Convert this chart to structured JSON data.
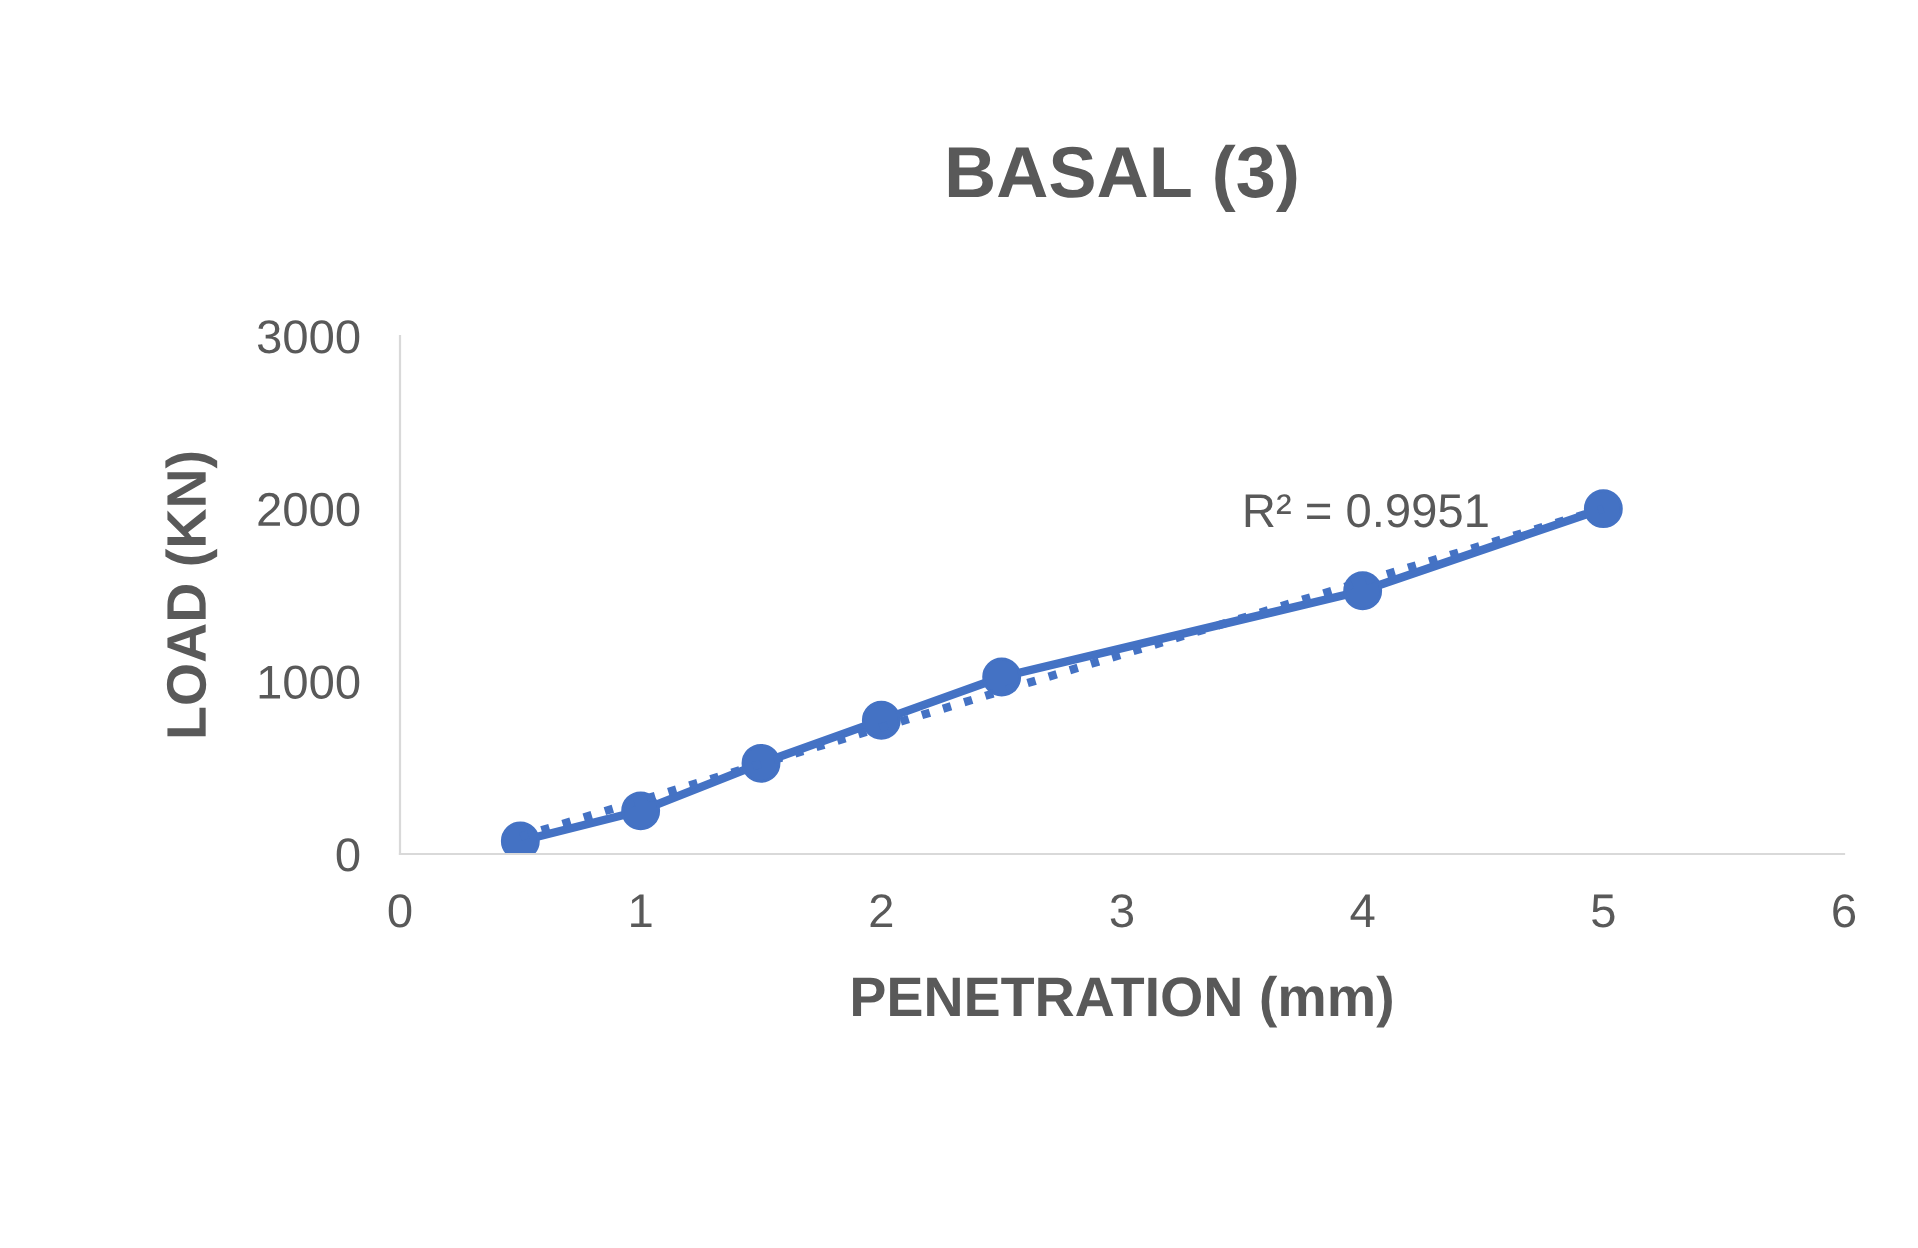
{
  "chart_data": {
    "type": "line",
    "title": "BASAL (3)",
    "xlabel": "PENETRATION (mm)",
    "ylabel": "LOAD (KN)",
    "xlim": [
      0,
      6
    ],
    "xticks": [
      0,
      1,
      2,
      3,
      4,
      5,
      6
    ],
    "ylim": [
      0,
      3000
    ],
    "yticks": [
      0,
      1000,
      2000,
      3000
    ],
    "grid": false,
    "legend": false,
    "series": [
      {
        "color": "#4472c4",
        "x": [
          0.5,
          1,
          1.5,
          2,
          2.5,
          4,
          5
        ],
        "values": [
          75,
          250,
          525,
          775,
          1025,
          1525,
          2000
        ],
        "marker": "circle",
        "line_style": "solid"
      },
      {
        "color": "#4472c4",
        "x": [
          0.5,
          5
        ],
        "values": [
          100,
          2000
        ],
        "marker": "none",
        "line_style": "dotted"
      }
    ],
    "annotations": [
      "R² = 0.9951"
    ]
  }
}
